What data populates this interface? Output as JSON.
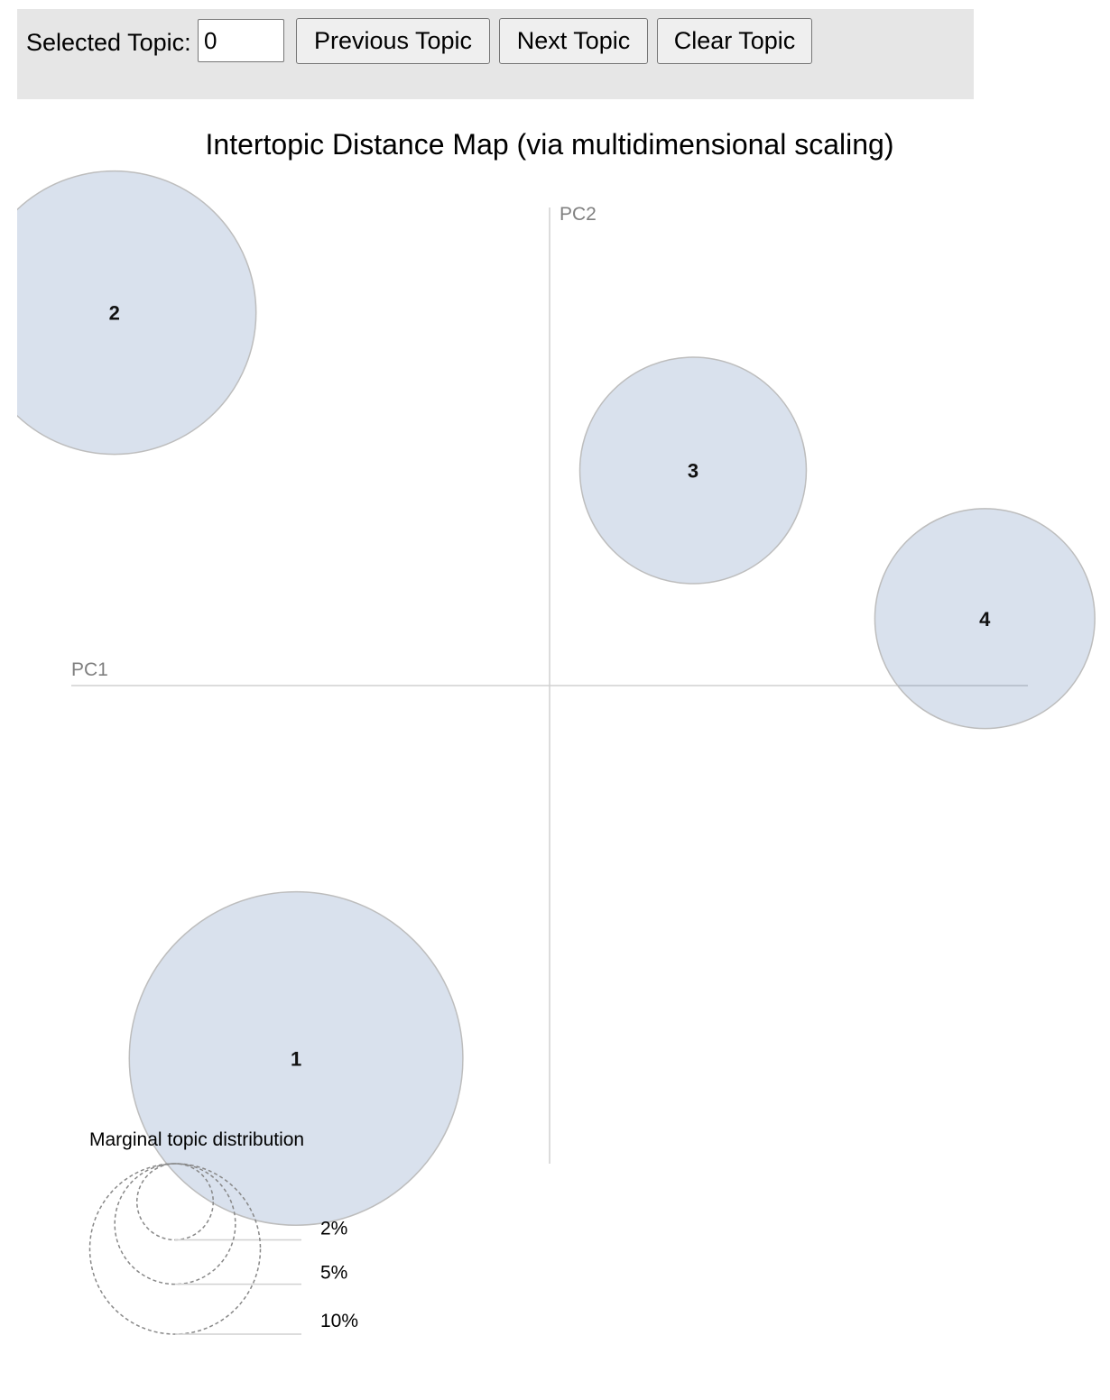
{
  "toolbar": {
    "selected_topic_label": "Selected Topic:",
    "selected_topic_value": "0",
    "prev_label": "Previous Topic",
    "next_label": "Next Topic",
    "clear_label": "Clear Topic"
  },
  "chart_data": {
    "type": "scatter",
    "title": "Intertopic Distance Map (via multidimensional scaling)",
    "xlabel": "PC1",
    "ylabel": "PC2",
    "xlim": [
      -1,
      1
    ],
    "ylim": [
      -1,
      1
    ],
    "grid": false,
    "circle_color": "#1f4e96",
    "topics": [
      {
        "label": "1",
        "pc1": -0.53,
        "pc2": -0.78,
        "marginal_pct": 11.5
      },
      {
        "label": "2",
        "pc1": -0.91,
        "pc2": 0.78,
        "marginal_pct": 8.3
      },
      {
        "label": "3",
        "pc1": 0.3,
        "pc2": 0.45,
        "marginal_pct": 5.3
      },
      {
        "label": "4",
        "pc1": 0.91,
        "pc2": 0.14,
        "marginal_pct": 5.0
      }
    ],
    "legend": {
      "title": "Marginal topic distribution",
      "placement": "bottom-left",
      "items": [
        {
          "pct": 2,
          "label": "2%"
        },
        {
          "pct": 5,
          "label": "5%"
        },
        {
          "pct": 10,
          "label": "10%"
        }
      ]
    }
  }
}
